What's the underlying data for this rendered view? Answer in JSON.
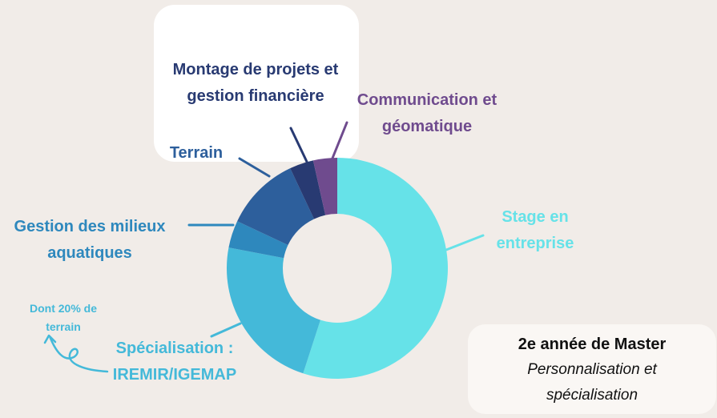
{
  "chart_data": {
    "type": "donut",
    "segments": [
      {
        "label_lines": [
          "Stage en",
          "entreprise"
        ],
        "value": 55,
        "color": "#66e2e8"
      },
      {
        "label_lines": [
          "Spécialisation :",
          "IREMIR/IGEMAP"
        ],
        "value": 23,
        "color": "#44b9d9"
      },
      {
        "label_lines": [
          "Gestion des milieux",
          "aquatiques"
        ],
        "value": 4,
        "color": "#2e88bd"
      },
      {
        "label_lines": [
          "Terrain"
        ],
        "value": 11,
        "color": "#2d5f9c"
      },
      {
        "label_lines": [
          "Montage de projets et",
          "gestion financière"
        ],
        "value": 3.5,
        "color": "#283a72"
      },
      {
        "label_lines": [
          "Communication et",
          "géomatique"
        ],
        "value": 3.5,
        "color": "#6f4b8e"
      }
    ]
  },
  "annotation": {
    "lines": [
      "Dont 20% de",
      "terrain"
    ],
    "color": "#44b9d9"
  },
  "info_card": {
    "title": "2e année de Master",
    "subtitle_lines": [
      "Personnalisation et",
      "spécialisation"
    ]
  }
}
